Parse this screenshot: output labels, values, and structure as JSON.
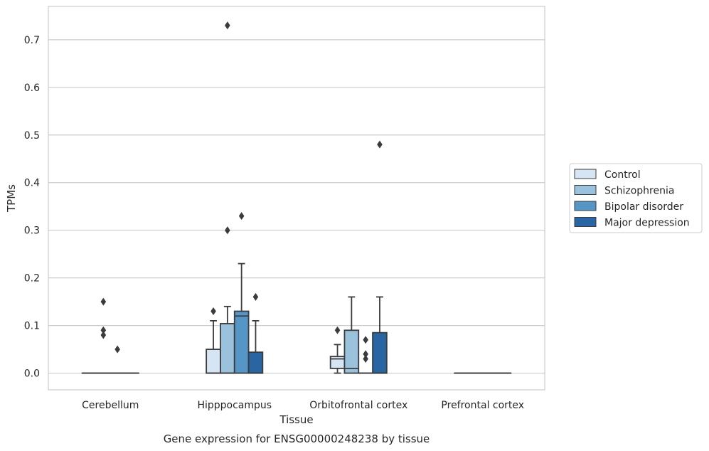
{
  "chart_data": {
    "type": "boxplot",
    "xlabel": "Tissue",
    "ylabel": "TPMs",
    "caption": "Gene expression for ENSG00000248238 by tissue",
    "categories": [
      "Cerebellum",
      "Hipppocampus",
      "Orbitofrontal cortex",
      "Prefrontal cortex"
    ],
    "ylim": [
      -0.035,
      0.77
    ],
    "yticks": [
      0.0,
      0.1,
      0.2,
      0.3,
      0.4,
      0.5,
      0.6,
      0.7
    ],
    "ytick_labels": [
      "0.0",
      "0.1",
      "0.2",
      "0.3",
      "0.4",
      "0.5",
      "0.6",
      "0.7"
    ],
    "grid": "horizontal",
    "legend_position": "right",
    "series": [
      {
        "name": "Control",
        "color": "#d6e5f4",
        "boxes": [
          {
            "min": 0,
            "q1": 0,
            "median": 0,
            "q3": 0,
            "max": 0,
            "outliers": []
          },
          {
            "min": 0,
            "q1": 0,
            "median": 0,
            "q3": 0.05,
            "max": 0.11,
            "outliers": [
              0.13
            ]
          },
          {
            "min": 0,
            "q1": 0.01,
            "median": 0.03,
            "q3": 0.035,
            "max": 0.06,
            "outliers": [
              0.09
            ]
          },
          {
            "min": 0,
            "q1": 0,
            "median": 0,
            "q3": 0,
            "max": 0,
            "outliers": []
          }
        ]
      },
      {
        "name": "Schizophrenia",
        "color": "#9ac2dc",
        "boxes": [
          {
            "min": 0,
            "q1": 0,
            "median": 0,
            "q3": 0,
            "max": 0,
            "outliers": [
              0.08,
              0.09,
              0.15
            ]
          },
          {
            "min": 0,
            "q1": 0,
            "median": 0,
            "q3": 0.104,
            "max": 0.14,
            "outliers": [
              0.3,
              0.73
            ]
          },
          {
            "min": 0,
            "q1": 0,
            "median": 0.01,
            "q3": 0.09,
            "max": 0.16,
            "outliers": []
          },
          {
            "min": 0,
            "q1": 0,
            "median": 0,
            "q3": 0,
            "max": 0,
            "outliers": []
          }
        ]
      },
      {
        "name": "Bipolar disorder",
        "color": "#5596c6",
        "boxes": [
          {
            "min": 0,
            "q1": 0,
            "median": 0,
            "q3": 0,
            "max": 0,
            "outliers": [
              0.05
            ]
          },
          {
            "min": 0,
            "q1": 0,
            "median": 0.12,
            "q3": 0.13,
            "max": 0.23,
            "outliers": [
              0.33
            ]
          },
          {
            "min": 0,
            "q1": 0,
            "median": 0,
            "q3": 0,
            "max": 0,
            "outliers": [
              0.03,
              0.04,
              0.07
            ]
          },
          {
            "min": 0,
            "q1": 0,
            "median": 0,
            "q3": 0,
            "max": 0,
            "outliers": []
          }
        ]
      },
      {
        "name": "Major depression",
        "color": "#2865a2",
        "boxes": [
          {
            "min": 0,
            "q1": 0,
            "median": 0,
            "q3": 0,
            "max": 0,
            "outliers": []
          },
          {
            "min": 0,
            "q1": 0,
            "median": 0,
            "q3": 0.044,
            "max": 0.11,
            "outliers": [
              0.16
            ]
          },
          {
            "min": 0,
            "q1": 0,
            "median": 0,
            "q3": 0.085,
            "max": 0.16,
            "outliers": [
              0.48
            ]
          },
          {
            "min": 0,
            "q1": 0,
            "median": 0,
            "q3": 0,
            "max": 0,
            "outliers": []
          }
        ]
      }
    ]
  }
}
